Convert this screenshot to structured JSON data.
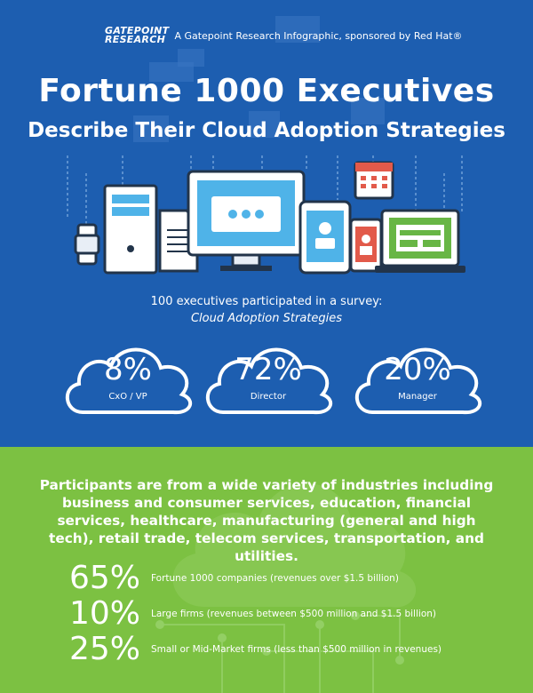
{
  "header": {
    "logo_line1": "GATEPOINT",
    "logo_line2": "RESEARCH",
    "sponsor": "A Gatepoint Research Infographic, sponsored by Red Hat®"
  },
  "title": {
    "line1": "Fortune 1000 Executives",
    "line2": "Describe Their Cloud Adoption Strategies"
  },
  "survey": {
    "line1": "100 executives participated in a survey:",
    "line2": "Cloud Adoption Strategies"
  },
  "clouds": [
    {
      "pct": "8%",
      "label": "CxO / VP"
    },
    {
      "pct": "72%",
      "label": "Director"
    },
    {
      "pct": "20%",
      "label": "Manager"
    }
  ],
  "industries_text": "Participants are from a wide variety of industries including business and consumer services, education, financial services, healthcare, manufacturing (general and high tech), retail trade, telecom services, transportation, and utilities.",
  "stats": [
    {
      "num": "65%",
      "desc": "Fortune 1000 companies (revenues over $1.5 billion)"
    },
    {
      "num": "10%",
      "desc": "Large firms (revenues between $500 million and $1.5 billion)"
    },
    {
      "num": "25%",
      "desc": "Small or Mid-Market firms (less than $500 million in revenues)"
    }
  ],
  "colors": {
    "blue": "#1d5eb0",
    "green": "#7cc142",
    "dark": "#22344a",
    "red": "#e25a4a",
    "device_green": "#68b645",
    "screen_blue": "#4fb3e8"
  }
}
